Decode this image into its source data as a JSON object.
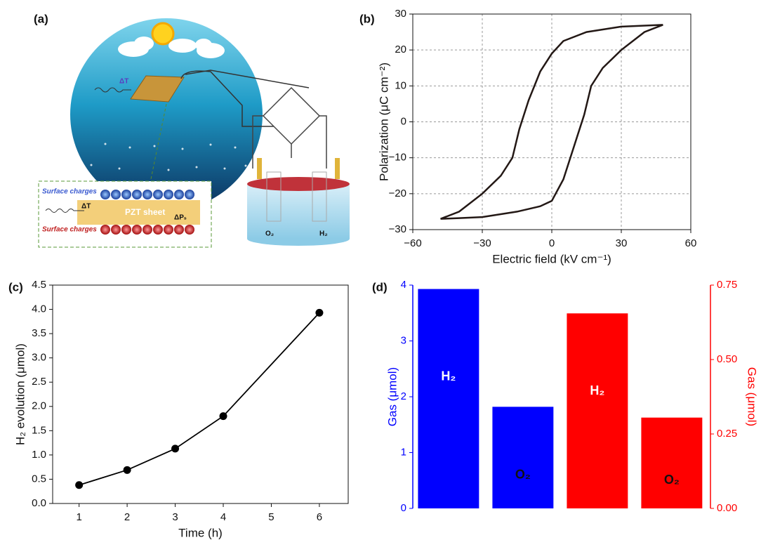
{
  "illustration": {
    "panel_label": "(a)",
    "delta_t": "ΔT",
    "surface_charges_top": "Surface charges",
    "delta_t_inset": "ΔT",
    "sheet": "PZT sheet",
    "delta_ps": "ΔPₛ",
    "surface_charges_bottom": "Surface charges",
    "o2": "O₂",
    "h2": "H₂"
  },
  "chart_data": [
    {
      "type": "line",
      "panel_label": "(b)",
      "xlabel": "Electric field (kV cm⁻¹)",
      "ylabel": "Polarization (μC cm⁻²)",
      "color": "#231815",
      "grid": true,
      "x": [
        48,
        30,
        15,
        5,
        0,
        -5,
        -10,
        -14,
        -17,
        -22,
        -30,
        -40,
        -48,
        -40,
        -30,
        -15,
        -5,
        0,
        5,
        10,
        14,
        17,
        22,
        30,
        40,
        48
      ],
      "values": [
        27,
        26.5,
        25,
        22.5,
        19,
        14,
        6,
        -2,
        -10,
        -15,
        -20,
        -25,
        -27,
        -26.8,
        -26.5,
        -25,
        -23.5,
        -22,
        -16,
        -6,
        2,
        10,
        15,
        20,
        25,
        27
      ],
      "xlim": [
        -60,
        60
      ],
      "xticks": [
        {
          "value": -60,
          "label": "−60"
        },
        {
          "value": -30,
          "label": "−30"
        },
        0,
        30,
        60
      ],
      "ylim": [
        -30,
        30
      ],
      "yticks": [
        {
          "value": -30,
          "label": "−30"
        },
        {
          "value": -20,
          "label": "−20"
        },
        {
          "value": -10,
          "label": "−10"
        },
        0,
        10,
        20,
        30
      ]
    },
    {
      "type": "line-markers",
      "panel_label": "(c)",
      "xlabel": "Time (h)",
      "ylabel": "H₂ evolution (μmol)",
      "color": "#000000",
      "grid": false,
      "x": [
        1,
        2,
        3,
        4,
        6
      ],
      "values": [
        0.38,
        0.69,
        1.13,
        1.8,
        3.93
      ],
      "xlim": [
        0.45,
        6.6
      ],
      "xticks": [
        1,
        2,
        3,
        4,
        5,
        6
      ],
      "ylim": [
        0,
        4.5
      ],
      "yticks": [
        {
          "value": 0,
          "label": "0.0"
        },
        0.5,
        {
          "value": 1,
          "label": "1.0"
        },
        1.5,
        {
          "value": 2,
          "label": "2.0"
        },
        2.5,
        {
          "value": 3,
          "label": "3.0"
        },
        3.5,
        {
          "value": 4,
          "label": "4.0"
        },
        4.5
      ]
    },
    {
      "type": "bar",
      "panel_label": "(d)",
      "ylabel": "Gas (μmol)",
      "y2label": "Gas (μmol)",
      "grid": false,
      "categories": [
        "H₂",
        "O₂",
        "H₂",
        "O₂"
      ],
      "series": [
        {
          "color": "#0000ff",
          "values": [
            3.93,
            1.82,
            null,
            null
          ]
        },
        {
          "color": "#ff0000",
          "axis": "y2",
          "values": [
            null,
            null,
            0.655,
            0.305
          ]
        }
      ],
      "ylim": [
        0,
        4
      ],
      "yticks": [
        0,
        1,
        2,
        3,
        4
      ],
      "y2lim": [
        0,
        0.75
      ],
      "y2ticks": [
        {
          "value": 0,
          "label": "0.00"
        },
        {
          "value": 0.25,
          "label": "0.25"
        },
        {
          "value": 0.5,
          "label": "0.50"
        },
        {
          "value": 0.75,
          "label": "0.75"
        }
      ]
    }
  ]
}
